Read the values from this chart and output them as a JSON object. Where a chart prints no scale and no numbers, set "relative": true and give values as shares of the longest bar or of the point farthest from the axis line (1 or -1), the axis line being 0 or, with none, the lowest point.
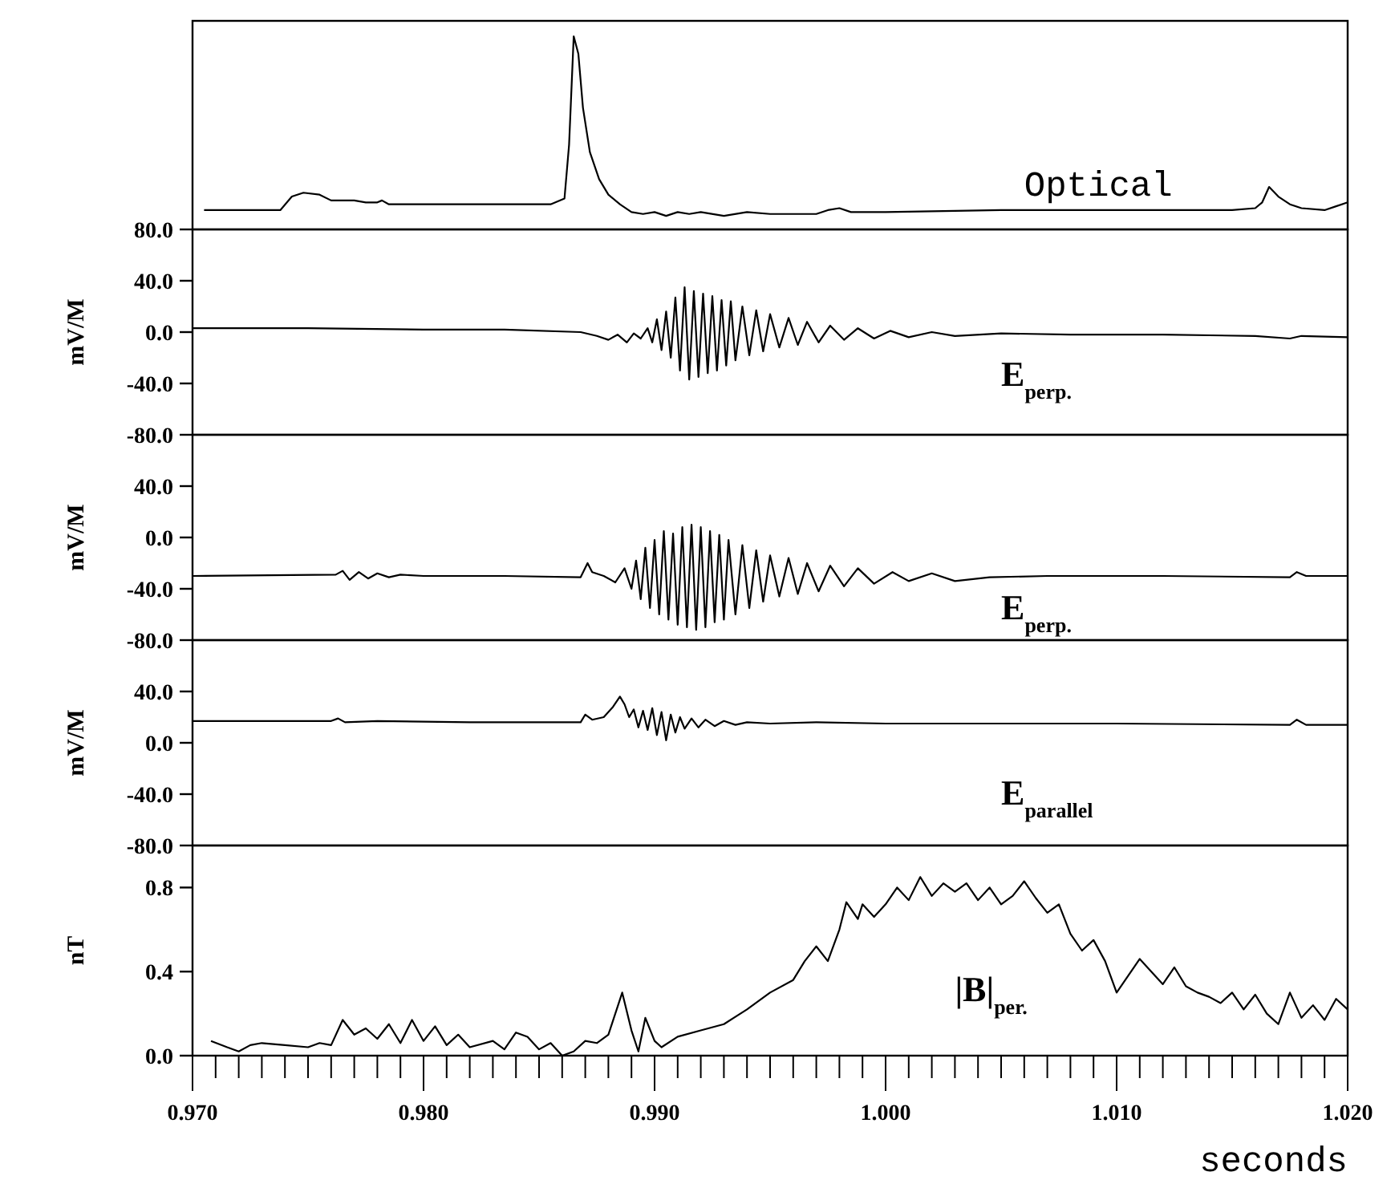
{
  "chart_data": [
    {
      "type": "line",
      "relative": true,
      "tick_labels": false,
      "xlim": [
        0.97,
        1.02
      ],
      "series": [
        {
          "name": "Optical",
          "color": "#000000",
          "x": [
            0.9705,
            0.9738,
            0.9743,
            0.9748,
            0.9755,
            0.976,
            0.977,
            0.9775,
            0.978,
            0.9782,
            0.9785,
            0.983,
            0.9855,
            0.9861,
            0.9863,
            0.9865,
            0.9867,
            0.9869,
            0.9872,
            0.9876,
            0.988,
            0.9885,
            0.989,
            0.9895,
            0.99,
            0.9905,
            0.991,
            0.9915,
            0.992,
            0.993,
            0.994,
            0.995,
            0.996,
            0.997,
            0.9975,
            0.998,
            0.9985,
            1.0,
            1.005,
            1.01,
            1.015,
            1.016,
            1.0163,
            1.0166,
            1.017,
            1.0175,
            1.018,
            1.019,
            1.0195,
            1.02
          ],
          "values": [
            0.1,
            0.1,
            0.17,
            0.19,
            0.18,
            0.15,
            0.15,
            0.14,
            0.14,
            0.15,
            0.13,
            0.13,
            0.13,
            0.16,
            0.44,
            1.0,
            0.91,
            0.63,
            0.4,
            0.26,
            0.18,
            0.13,
            0.09,
            0.08,
            0.09,
            0.07,
            0.09,
            0.08,
            0.09,
            0.07,
            0.09,
            0.08,
            0.08,
            0.08,
            0.1,
            0.11,
            0.09,
            0.09,
            0.1,
            0.1,
            0.1,
            0.11,
            0.14,
            0.22,
            0.17,
            0.13,
            0.11,
            0.1,
            0.12,
            0.14
          ]
        }
      ]
    },
    {
      "type": "line",
      "tick_labels": "y",
      "xlim": [
        0.97,
        1.02
      ],
      "ylim": [
        -80,
        80
      ],
      "yticks": [
        {
          "value": 80,
          "label": "80.0"
        },
        {
          "value": 40,
          "label": "40.0"
        },
        {
          "value": 0,
          "label": "0.0"
        },
        {
          "value": -40,
          "label": "-40.0"
        },
        {
          "value": -80,
          "label": "-80.0"
        }
      ],
      "ylabel": "mV/M",
      "series": [
        {
          "name": "E$_{perp.}$",
          "color": "#000000",
          "x": [
            0.97,
            0.975,
            0.98,
            0.9835,
            0.9868,
            0.9875,
            0.988,
            0.9884,
            0.9888,
            0.9891,
            0.9894,
            0.9897,
            0.9899,
            0.9901,
            0.9903,
            0.9905,
            0.9907,
            0.9909,
            0.9911,
            0.9913,
            0.9915,
            0.9917,
            0.9919,
            0.9921,
            0.9923,
            0.9925,
            0.9927,
            0.9929,
            0.9931,
            0.9933,
            0.9935,
            0.9938,
            0.9941,
            0.9944,
            0.9947,
            0.995,
            0.9954,
            0.9958,
            0.9962,
            0.9966,
            0.9971,
            0.9976,
            0.9982,
            0.9988,
            0.9995,
            1.0002,
            1.001,
            1.002,
            1.003,
            1.005,
            1.008,
            1.012,
            1.016,
            1.0175,
            1.018,
            1.02
          ],
          "values": [
            3,
            3,
            2,
            2,
            0,
            -3,
            -6,
            -2,
            -8,
            -1,
            -5,
            3,
            -8,
            10,
            -14,
            16,
            -20,
            27,
            -30,
            35,
            -37,
            32,
            -35,
            30,
            -32,
            28,
            -30,
            25,
            -26,
            24,
            -22,
            20,
            -18,
            17,
            -15,
            14,
            -12,
            11,
            -10,
            8,
            -8,
            5,
            -6,
            3,
            -5,
            1,
            -4,
            0,
            -3,
            -1,
            -2,
            -2,
            -3,
            -5,
            -3,
            -4
          ]
        }
      ]
    },
    {
      "type": "line",
      "tick_labels": "y",
      "xlim": [
        0.97,
        1.02
      ],
      "ylim": [
        -80,
        80
      ],
      "yticks": [
        {
          "value": 40,
          "label": "40.0"
        },
        {
          "value": 0,
          "label": "0.0"
        },
        {
          "value": -40,
          "label": "-40.0"
        },
        {
          "value": -80,
          "label": "-80.0"
        }
      ],
      "ylabel": "mV/M",
      "series": [
        {
          "name": "E$_{perp.}$",
          "color": "#000000",
          "x": [
            0.97,
            0.9762,
            0.9765,
            0.9768,
            0.9772,
            0.9776,
            0.978,
            0.9785,
            0.979,
            0.98,
            0.9835,
            0.9868,
            0.9871,
            0.9873,
            0.9878,
            0.9883,
            0.9887,
            0.989,
            0.9892,
            0.9894,
            0.9896,
            0.9898,
            0.99,
            0.9902,
            0.9904,
            0.9906,
            0.9908,
            0.991,
            0.9912,
            0.9914,
            0.9916,
            0.9918,
            0.992,
            0.9922,
            0.9924,
            0.9926,
            0.9928,
            0.993,
            0.9932,
            0.9935,
            0.9938,
            0.9941,
            0.9944,
            0.9947,
            0.995,
            0.9954,
            0.9958,
            0.9962,
            0.9966,
            0.9971,
            0.9976,
            0.9982,
            0.9988,
            0.9995,
            1.0003,
            1.001,
            1.002,
            1.003,
            1.0045,
            1.007,
            1.012,
            1.0175,
            1.0178,
            1.0182,
            1.02
          ],
          "values": [
            -30,
            -29,
            -26,
            -33,
            -27,
            -32,
            -28,
            -31,
            -29,
            -30,
            -30,
            -31,
            -20,
            -27,
            -30,
            -35,
            -24,
            -40,
            -18,
            -48,
            -8,
            -55,
            -2,
            -60,
            5,
            -64,
            3,
            -68,
            8,
            -70,
            10,
            -72,
            8,
            -70,
            5,
            -66,
            2,
            -64,
            -2,
            -60,
            -6,
            -55,
            -10,
            -50,
            -14,
            -46,
            -16,
            -44,
            -20,
            -42,
            -22,
            -38,
            -24,
            -36,
            -27,
            -34,
            -28,
            -34,
            -31,
            -30,
            -30,
            -31,
            -27,
            -30,
            -30
          ]
        }
      ]
    },
    {
      "type": "line",
      "tick_labels": "y",
      "xlim": [
        0.97,
        1.02
      ],
      "ylim": [
        -80,
        80
      ],
      "yticks": [
        {
          "value": 40,
          "label": "40.0"
        },
        {
          "value": 0,
          "label": "0.0"
        },
        {
          "value": -40,
          "label": "-40.0"
        },
        {
          "value": -80,
          "label": "-80.0"
        }
      ],
      "ylabel": "mV/M",
      "series": [
        {
          "name": "E$_{parallel}$",
          "color": "#000000",
          "x": [
            0.97,
            0.976,
            0.9763,
            0.9766,
            0.978,
            0.982,
            0.9868,
            0.987,
            0.9873,
            0.9878,
            0.9882,
            0.9885,
            0.9887,
            0.9889,
            0.9891,
            0.9893,
            0.9895,
            0.9897,
            0.9899,
            0.9901,
            0.9903,
            0.9905,
            0.9907,
            0.9909,
            0.9911,
            0.9913,
            0.9916,
            0.9919,
            0.9922,
            0.9926,
            0.993,
            0.9935,
            0.994,
            0.995,
            0.997,
            1.0,
            1.01,
            1.0175,
            1.0178,
            1.0182,
            1.02
          ],
          "values": [
            17,
            17,
            19,
            16,
            17,
            16,
            16,
            22,
            18,
            20,
            28,
            36,
            30,
            20,
            26,
            12,
            25,
            10,
            27,
            6,
            24,
            2,
            22,
            8,
            20,
            11,
            19,
            12,
            18,
            13,
            17,
            14,
            16,
            15,
            16,
            15,
            15,
            14,
            18,
            14,
            14
          ]
        }
      ]
    },
    {
      "type": "line",
      "xlim": [
        0.97,
        1.02
      ],
      "ylim": [
        0,
        1.0
      ],
      "yticks": [
        {
          "value": 0,
          "label": "0.0"
        },
        0.4,
        0.8
      ],
      "ylabel": "nT",
      "xlabel": "seconds",
      "xticks": [
        {
          "value": 0.97,
          "label": "0.970"
        },
        {
          "value": 0.971,
          "label": null
        },
        {
          "value": 0.972,
          "label": null
        },
        {
          "value": 0.973,
          "label": null
        },
        {
          "value": 0.974,
          "label": null
        },
        {
          "value": 0.975,
          "label": null
        },
        {
          "value": 0.976,
          "label": null
        },
        {
          "value": 0.977,
          "label": null
        },
        {
          "value": 0.978,
          "label": null
        },
        {
          "value": 0.979,
          "label": null
        },
        {
          "value": 0.98,
          "label": "0.980"
        },
        {
          "value": 0.981,
          "label": null
        },
        {
          "value": 0.982,
          "label": null
        },
        {
          "value": 0.983,
          "label": null
        },
        {
          "value": 0.984,
          "label": null
        },
        {
          "value": 0.985,
          "label": null
        },
        {
          "value": 0.986,
          "label": null
        },
        {
          "value": 0.987,
          "label": null
        },
        {
          "value": 0.988,
          "label": null
        },
        {
          "value": 0.989,
          "label": null
        },
        {
          "value": 0.99,
          "label": "0.990"
        },
        {
          "value": 0.991,
          "label": null
        },
        {
          "value": 0.992,
          "label": null
        },
        {
          "value": 0.993,
          "label": null
        },
        {
          "value": 0.994,
          "label": null
        },
        {
          "value": 0.995,
          "label": null
        },
        {
          "value": 0.996,
          "label": null
        },
        {
          "value": 0.997,
          "label": null
        },
        {
          "value": 0.998,
          "label": null
        },
        {
          "value": 0.999,
          "label": null
        },
        {
          "value": 1.0,
          "label": "1.000"
        },
        {
          "value": 1.001,
          "label": null
        },
        {
          "value": 1.002,
          "label": null
        },
        {
          "value": 1.003,
          "label": null
        },
        {
          "value": 1.004,
          "label": null
        },
        {
          "value": 1.005,
          "label": null
        },
        {
          "value": 1.006,
          "label": null
        },
        {
          "value": 1.007,
          "label": null
        },
        {
          "value": 1.008,
          "label": null
        },
        {
          "value": 1.009,
          "label": null
        },
        {
          "value": 1.01,
          "label": "1.010"
        },
        {
          "value": 1.011,
          "label": null
        },
        {
          "value": 1.012,
          "label": null
        },
        {
          "value": 1.013,
          "label": null
        },
        {
          "value": 1.014,
          "label": null
        },
        {
          "value": 1.015,
          "label": null
        },
        {
          "value": 1.016,
          "label": null
        },
        {
          "value": 1.017,
          "label": null
        },
        {
          "value": 1.018,
          "label": null
        },
        {
          "value": 1.019,
          "label": null
        },
        {
          "value": 1.02,
          "label": "1.020"
        }
      ],
      "series": [
        {
          "name": "|B|$_{per.}$",
          "color": "#000000",
          "x": [
            0.9708,
            0.9715,
            0.972,
            0.9725,
            0.973,
            0.974,
            0.975,
            0.9755,
            0.976,
            0.9765,
            0.977,
            0.9775,
            0.978,
            0.9785,
            0.979,
            0.9795,
            0.98,
            0.9805,
            0.981,
            0.9815,
            0.982,
            0.983,
            0.9835,
            0.984,
            0.9845,
            0.985,
            0.9855,
            0.986,
            0.9865,
            0.987,
            0.9875,
            0.988,
            0.9886,
            0.989,
            0.9893,
            0.9896,
            0.99,
            0.9903,
            0.991,
            0.992,
            0.993,
            0.994,
            0.995,
            0.996,
            0.9965,
            0.997,
            0.9975,
            0.998,
            0.9983,
            0.9988,
            0.999,
            0.9995,
            1.0,
            1.0005,
            1.001,
            1.0015,
            1.002,
            1.0025,
            1.003,
            1.0035,
            1.004,
            1.0045,
            1.005,
            1.0055,
            1.006,
            1.0065,
            1.007,
            1.0075,
            1.008,
            1.0085,
            1.009,
            1.0095,
            1.01,
            1.0105,
            1.011,
            1.0115,
            1.012,
            1.0125,
            1.013,
            1.0135,
            1.014,
            1.0145,
            1.015,
            1.0155,
            1.016,
            1.0165,
            1.017,
            1.0175,
            1.018,
            1.0185,
            1.019,
            1.0195,
            1.02
          ],
          "values": [
            0.07,
            0.04,
            0.02,
            0.05,
            0.06,
            0.05,
            0.04,
            0.06,
            0.05,
            0.17,
            0.1,
            0.13,
            0.08,
            0.15,
            0.06,
            0.17,
            0.07,
            0.14,
            0.05,
            0.1,
            0.04,
            0.07,
            0.03,
            0.11,
            0.09,
            0.03,
            0.06,
            0.0,
            0.02,
            0.07,
            0.06,
            0.1,
            0.3,
            0.12,
            0.02,
            0.18,
            0.07,
            0.04,
            0.09,
            0.12,
            0.15,
            0.22,
            0.3,
            0.36,
            0.45,
            0.52,
            0.45,
            0.6,
            0.73,
            0.65,
            0.72,
            0.66,
            0.72,
            0.8,
            0.74,
            0.85,
            0.76,
            0.82,
            0.78,
            0.82,
            0.74,
            0.8,
            0.72,
            0.76,
            0.83,
            0.75,
            0.68,
            0.72,
            0.58,
            0.5,
            0.55,
            0.45,
            0.3,
            0.38,
            0.46,
            0.4,
            0.34,
            0.42,
            0.33,
            0.3,
            0.28,
            0.25,
            0.3,
            0.22,
            0.29,
            0.2,
            0.15,
            0.3,
            0.18,
            0.24,
            0.17,
            0.27,
            0.22
          ]
        }
      ]
    }
  ]
}
